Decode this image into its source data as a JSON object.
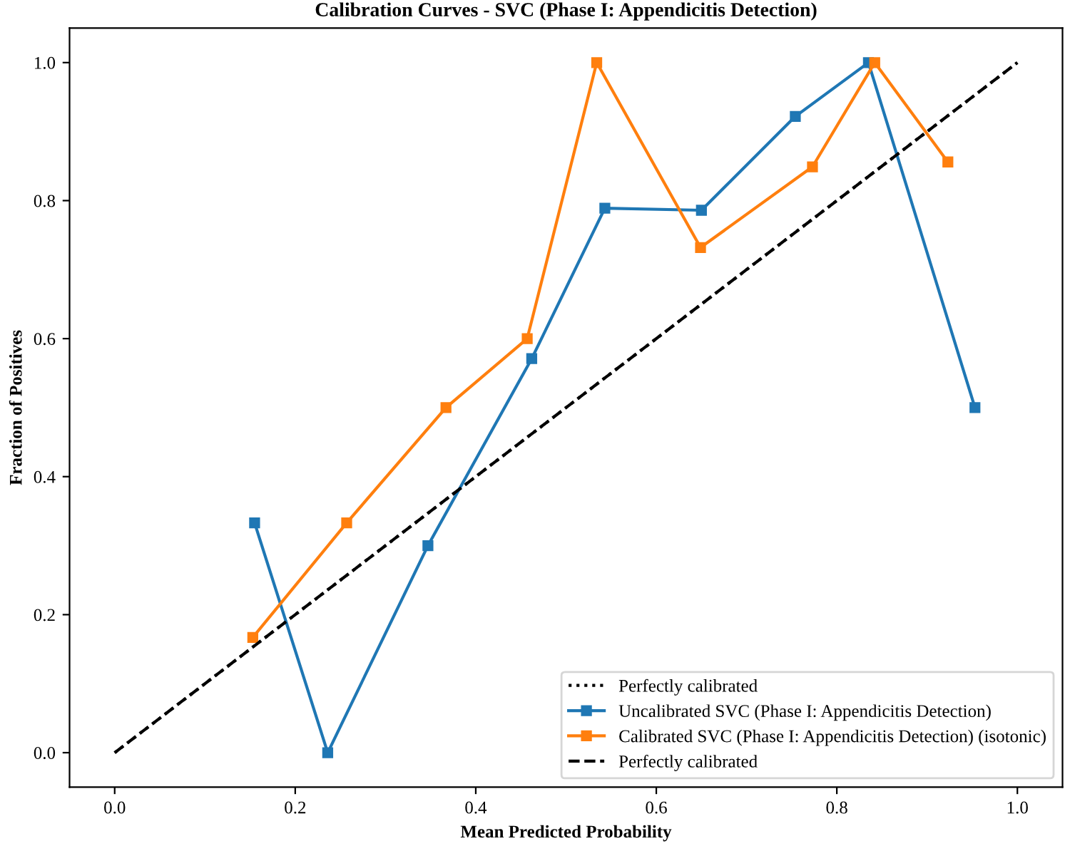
{
  "chart_data": {
    "type": "line",
    "title": "Calibration Curves - SVC (Phase I: Appendicitis Detection)",
    "xlabel": "Mean Predicted Probability",
    "ylabel": "Fraction of Positives",
    "series": [
      {
        "name": "Perfectly calibrated",
        "color": "#000000",
        "line_style": "dotted",
        "marker": "none",
        "x": [
          0,
          1
        ],
        "values": [
          0,
          1
        ]
      },
      {
        "name": "Uncalibrated SVC (Phase I: Appendicitis Detection)",
        "color": "#1f77b4",
        "line_style": "solid",
        "marker": "square",
        "x": [
          0.155,
          0.236,
          0.347,
          0.462,
          0.543,
          0.65,
          0.754,
          0.835,
          0.953
        ],
        "values": [
          0.333,
          0.0,
          0.3,
          0.571,
          0.789,
          0.786,
          0.922,
          1.0,
          0.5
        ]
      },
      {
        "name": "Calibrated SVC (Phase I: Appendicitis Detection) (isotonic)",
        "color": "#ff7f0e",
        "line_style": "solid",
        "marker": "square",
        "x": [
          0.153,
          0.257,
          0.367,
          0.457,
          0.534,
          0.649,
          0.773,
          0.842,
          0.923
        ],
        "values": [
          0.167,
          0.333,
          0.5,
          0.6,
          1.0,
          0.732,
          0.849,
          1.0,
          0.856
        ]
      },
      {
        "name": "Perfectly calibrated",
        "color": "#000000",
        "line_style": "dashed",
        "marker": "none",
        "x": [
          0,
          1
        ],
        "values": [
          0,
          1
        ]
      }
    ],
    "xlim": [
      -0.05,
      1.05
    ],
    "ylim": [
      -0.05,
      1.05
    ],
    "xticks": [
      {
        "value": 0,
        "label": "0.0"
      },
      0.2,
      0.4,
      0.6,
      0.8,
      {
        "value": 1,
        "label": "1.0"
      }
    ],
    "yticks": [
      {
        "value": 0,
        "label": "0.0"
      },
      0.2,
      0.4,
      0.6,
      0.8,
      {
        "value": 1,
        "label": "1.0"
      }
    ],
    "grid": false,
    "legend": "lower right"
  }
}
